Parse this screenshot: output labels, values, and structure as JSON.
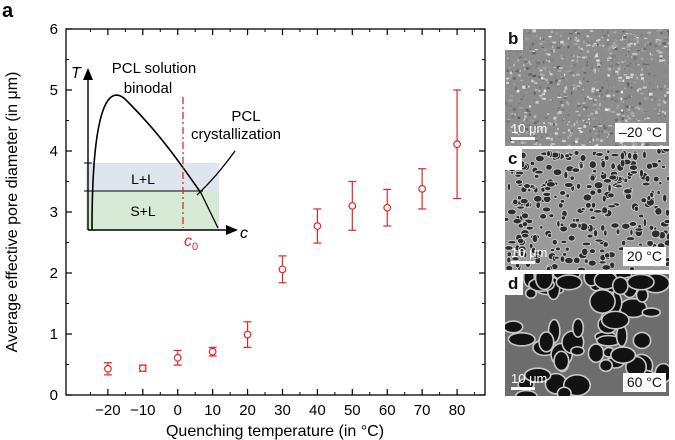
{
  "panel_a_label": "a",
  "chart_data": {
    "type": "scatter",
    "marker": "open-circle",
    "error_bars": true,
    "color": "#e0282a",
    "xlabel": "Quenching temperature (in °C)",
    "ylabel": "Average effective pore diameter (in μm)",
    "xlim": [
      -32,
      88
    ],
    "ylim": [
      0,
      6
    ],
    "xticks": [
      -20,
      -10,
      0,
      10,
      20,
      30,
      40,
      50,
      60,
      70,
      80
    ],
    "yticks": [
      0,
      1,
      2,
      3,
      4,
      5,
      6
    ],
    "series": [
      {
        "name": "pore diameter",
        "points": [
          {
            "x": -20,
            "y": 0.43,
            "err": 0.1
          },
          {
            "x": -10,
            "y": 0.44,
            "err": 0.05
          },
          {
            "x": 0,
            "y": 0.61,
            "err": 0.12
          },
          {
            "x": 10,
            "y": 0.71,
            "err": 0.07
          },
          {
            "x": 20,
            "y": 0.99,
            "err": 0.21
          },
          {
            "x": 30,
            "y": 2.06,
            "err": 0.22
          },
          {
            "x": 40,
            "y": 2.77,
            "err": 0.28
          },
          {
            "x": 50,
            "y": 3.1,
            "err": 0.4
          },
          {
            "x": 60,
            "y": 3.07,
            "err": 0.3
          },
          {
            "x": 70,
            "y": 3.38,
            "err": 0.33
          },
          {
            "x": 80,
            "y": 4.11,
            "err": 0.89
          }
        ]
      }
    ],
    "inset": {
      "description": "phase diagram",
      "y_axis_label": "T",
      "x_axis_label": "c",
      "binodal_label_line1": "PCL solution",
      "binodal_label_line2": "binodal",
      "cryst_label_line1": "PCL",
      "cryst_label_line2": "crystallization",
      "region_upper": "L+L",
      "region_lower": "S+L",
      "marker_label_main": "c",
      "marker_label_sub": "0",
      "upper_band_color": "#dfe5ef",
      "lower_band_color": "#d7ead6",
      "marker_color": "#e0282a"
    }
  },
  "micrographs": [
    {
      "letter": "b",
      "temperature": "–20 °C",
      "scale": "10 μm",
      "pores": "fine"
    },
    {
      "letter": "c",
      "temperature": "20 °C",
      "scale": "10 μm",
      "pores": "medium"
    },
    {
      "letter": "d",
      "temperature": "60 °C",
      "scale": "10 μm",
      "pores": "large"
    }
  ]
}
